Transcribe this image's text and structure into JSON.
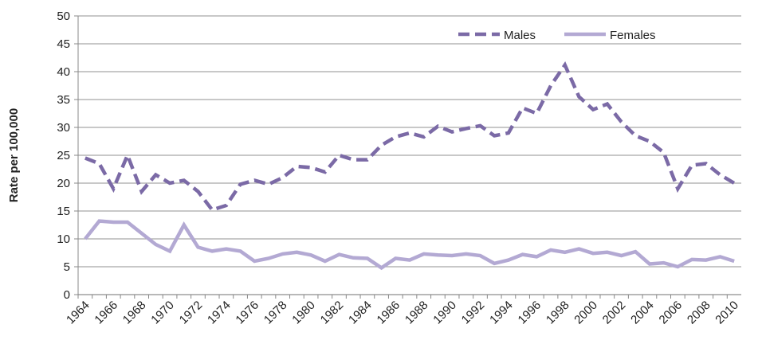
{
  "chart_data": {
    "type": "line",
    "y_label": "Rate per 100,000",
    "categories": [
      "1964",
      null,
      "1966",
      null,
      "1968",
      null,
      "1970",
      null,
      "1972",
      null,
      "1974",
      null,
      "1976",
      null,
      "1978",
      null,
      "1980",
      null,
      "1982",
      null,
      "1984",
      null,
      "1986",
      null,
      "1988",
      null,
      "1990",
      null,
      "1992",
      null,
      "1994",
      null,
      "1996",
      null,
      "1998",
      null,
      "2000",
      null,
      "2002",
      null,
      "2004",
      null,
      "2006",
      null,
      "2008",
      null,
      "2010"
    ],
    "series": [
      {
        "name": "Males",
        "color": "#7b6aa6",
        "dashed": true,
        "values": [
          24.5,
          23.5,
          19,
          25,
          18.5,
          21.5,
          20,
          20.5,
          18.5,
          15.2,
          16,
          19.8,
          20.5,
          19.8,
          21,
          23,
          22.8,
          22,
          25,
          24.2,
          24.2,
          26.8,
          28.3,
          29,
          28.3,
          30.2,
          29.2,
          29.8,
          30.3,
          28.5,
          29,
          33.5,
          32.5,
          37.5,
          41.2,
          35.5,
          33.2,
          34.2,
          31,
          28.5,
          27.5,
          25.5,
          19,
          23.2,
          23.5,
          21.5,
          20
        ]
      },
      {
        "name": "Females",
        "color": "#b3a9d3",
        "dashed": false,
        "values": [
          10,
          13.2,
          13,
          13,
          11,
          9,
          7.8,
          12.5,
          8.5,
          7.8,
          8.2,
          7.8,
          6,
          6.5,
          7.3,
          7.6,
          7.1,
          6,
          7.2,
          6.6,
          6.5,
          4.8,
          6.5,
          6.2,
          7.3,
          7.1,
          7,
          7.3,
          7,
          5.6,
          6.2,
          7.2,
          6.8,
          8,
          7.6,
          8.2,
          7.4,
          7.6,
          7,
          7.7,
          5.5,
          5.7,
          5,
          6.3,
          6.2,
          6.8,
          6
        ]
      }
    ],
    "ylim": [
      0,
      50
    ],
    "yticks": [
      0,
      5,
      10,
      15,
      20,
      25,
      30,
      35,
      40,
      45,
      50
    ],
    "grid": true,
    "legend": "top-right"
  }
}
